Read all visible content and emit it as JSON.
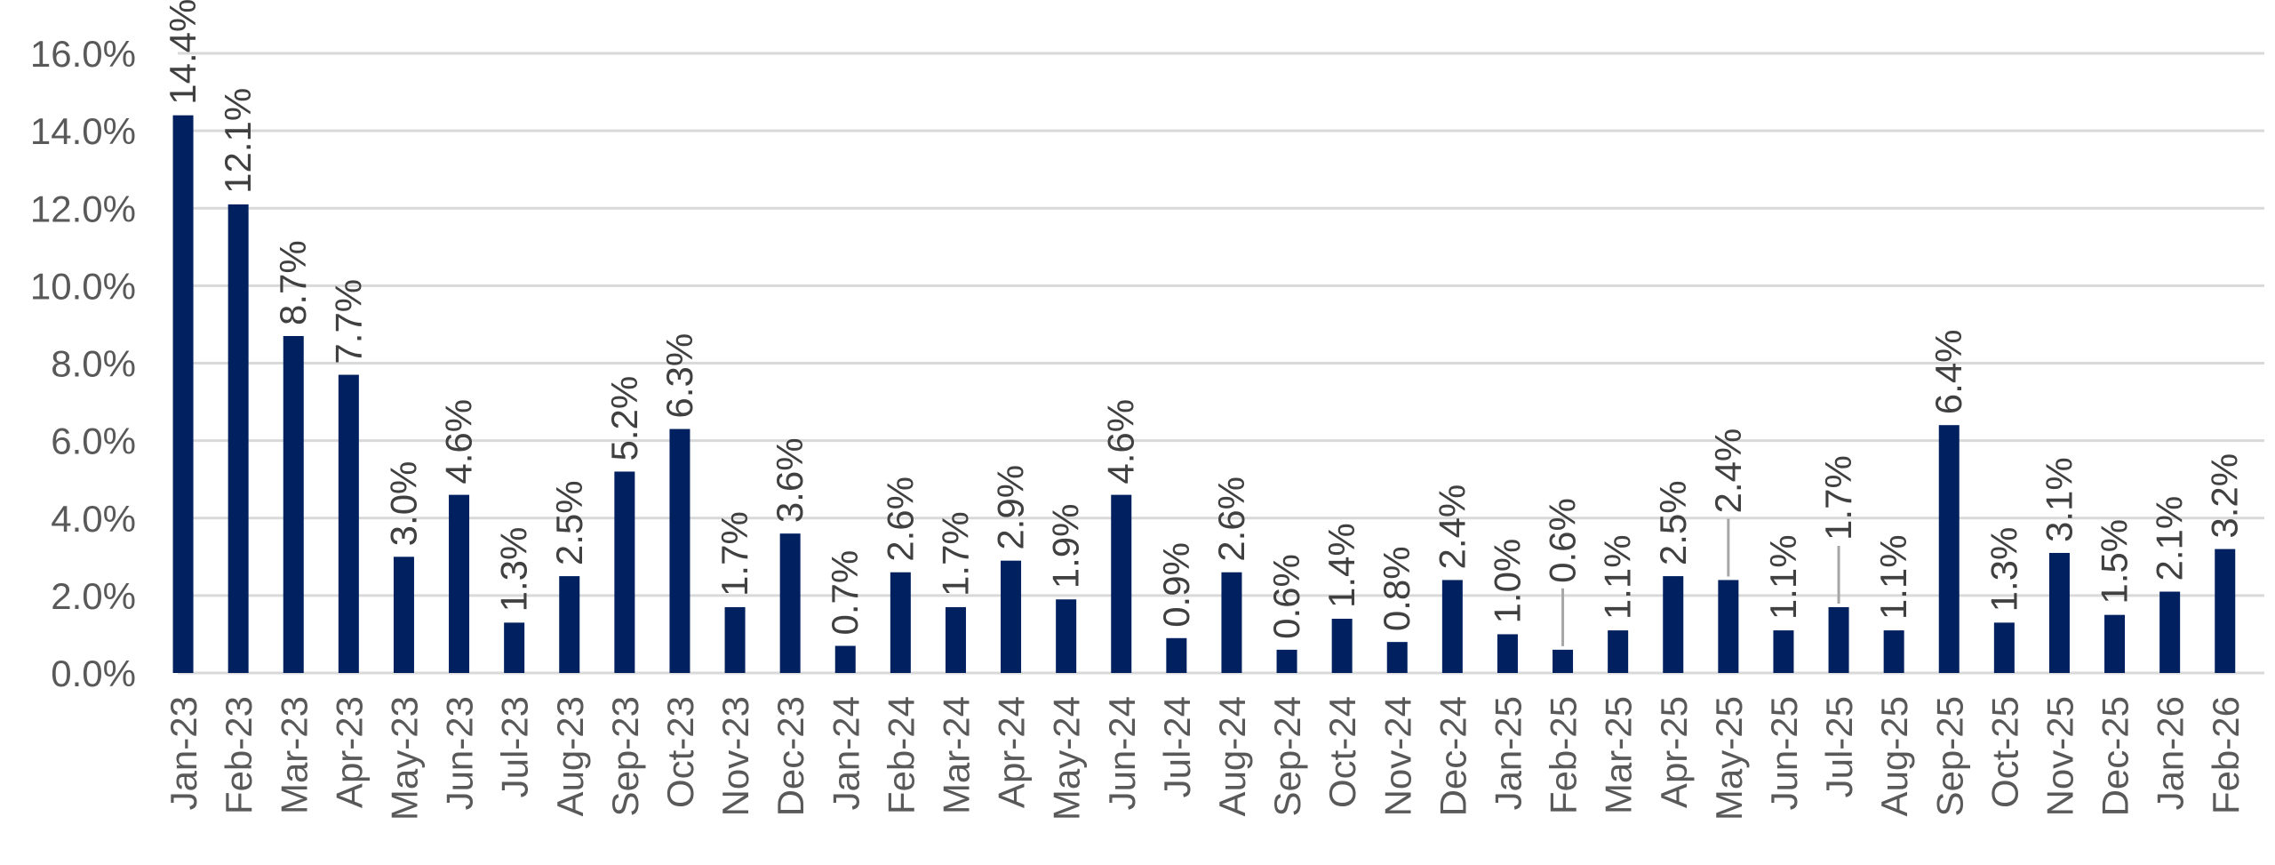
{
  "chart_data": {
    "type": "bar",
    "title": "",
    "xlabel": "",
    "ylabel": "",
    "ylim": [
      0,
      16
    ],
    "y_tick_step": 2,
    "y_tick_format": "percent_1dp",
    "grid": true,
    "legend": "none",
    "colors": {
      "bar": "#002060",
      "grid": "#d9d9d9",
      "tick_text": "#595959",
      "label_text": "#404040",
      "leader": "#a6a6a6"
    },
    "categories": [
      "Jan-23",
      "Feb-23",
      "Mar-23",
      "Apr-23",
      "May-23",
      "Jun-23",
      "Jul-23",
      "Aug-23",
      "Sep-23",
      "Oct-23",
      "Nov-23",
      "Dec-23",
      "Jan-24",
      "Feb-24",
      "Mar-24",
      "Apr-24",
      "May-24",
      "Jun-24",
      "Jul-24",
      "Aug-24",
      "Sep-24",
      "Oct-24",
      "Nov-24",
      "Dec-24",
      "Jan-25",
      "Feb-25",
      "Mar-25",
      "Apr-25",
      "May-25",
      "Jun-25",
      "Jul-25",
      "Aug-25",
      "Sep-25",
      "Oct-25",
      "Nov-25",
      "Dec-25",
      "Jan-26",
      "Feb-26"
    ],
    "values": [
      14.4,
      12.1,
      8.7,
      7.7,
      3.0,
      4.6,
      1.3,
      2.5,
      5.2,
      6.3,
      1.7,
      3.6,
      0.7,
      2.6,
      1.7,
      2.9,
      1.9,
      4.6,
      0.9,
      2.6,
      0.6,
      1.4,
      0.8,
      2.4,
      1.0,
      0.6,
      1.1,
      2.5,
      2.4,
      1.1,
      1.7,
      1.1,
      6.4,
      1.3,
      3.1,
      1.5,
      2.1,
      3.2
    ],
    "data_labels": [
      "14.4%",
      "12.1%",
      "8.7%",
      "7.7%",
      "3.0%",
      "4.6%",
      "1.3%",
      "2.5%",
      "5.2%",
      "6.3%",
      "1.7%",
      "3.6%",
      "0.7%",
      "2.6%",
      "1.7%",
      "2.9%",
      "1.9%",
      "4.6%",
      "0.9%",
      "2.6%",
      "0.6%",
      "1.4%",
      "0.8%",
      "2.4%",
      "1.0%",
      "0.6%",
      "1.1%",
      "2.5%",
      "2.4%",
      "1.1%",
      "1.7%",
      "1.1%",
      "6.4%",
      "1.3%",
      "3.1%",
      "1.5%",
      "2.1%",
      "3.2%"
    ],
    "leader_lines": [
      "Feb-25",
      "May-25",
      "Jul-25"
    ]
  }
}
